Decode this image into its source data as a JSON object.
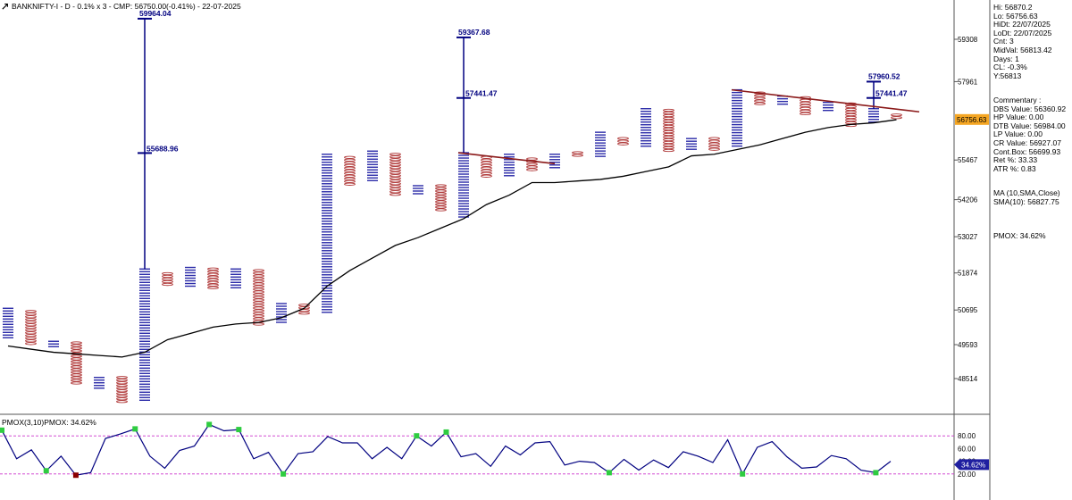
{
  "title": "BANKNIFTY-I - D - 0.1% x 3 - CMP: 56750.00(-0.41%) - 22-07-2025",
  "pane_title": "PMOX(3,10)PMOX: 34.62%",
  "colors": {
    "up": "#2a2aa8",
    "down": "#b03a3a",
    "ma": "#000000",
    "level": "#000080",
    "trend": "#8b1a1a",
    "pmox": "#000080",
    "dot_green": "#2ecc40",
    "dot_red": "#8b0000",
    "guide": "#cc33cc",
    "price_tag": "#f5a623",
    "pmox_tag": "#1f1fa0"
  },
  "info": {
    "lines": [
      "Hi: 56870.2",
      "Lo: 56756.63",
      "HiDt: 22/07/2025",
      "LoDt: 22/07/2025",
      "Cnt: 3",
      "MidVal: 56813.42",
      "Days: 1",
      "CL: -0.3%",
      "Y:56813"
    ],
    "commentary": [
      "Commentary :",
      "DBS Value:  56360.92",
      "HP Value: 0.00",
      "DTB Value: 56984.00",
      "LP Value: 0.00",
      "CR Value: 56927.07",
      "Cont.Box: 56699.93",
      "Ret %: 33.33",
      "ATR %: 0.83"
    ],
    "ma": [
      "MA (10,SMA,Close)",
      "SMA(10): 56827.75"
    ],
    "pmox": "PMOX: 34.62%"
  },
  "price_tag": "56756.63",
  "pmox_tag": "34.62%",
  "chart_data": {
    "type": "box-chart",
    "y_axis_ticks": [
      59308,
      57961,
      56756.63,
      55467,
      54206,
      53027,
      51874,
      50695,
      49593,
      48514
    ],
    "columns": [
      {
        "dir": "up",
        "hi": 50750,
        "lo": 49750
      },
      {
        "dir": "down",
        "hi": 50650,
        "lo": 49600
      },
      {
        "dir": "up",
        "hi": 49700,
        "lo": 49450
      },
      {
        "dir": "down",
        "hi": 49650,
        "lo": 48350
      },
      {
        "dir": "up",
        "hi": 48550,
        "lo": 48200
      },
      {
        "dir": "down",
        "hi": 48550,
        "lo": 47750
      },
      {
        "dir": "up",
        "hi": 52000,
        "lo": 47800
      },
      {
        "dir": "down",
        "hi": 51850,
        "lo": 51450
      },
      {
        "dir": "up",
        "hi": 52050,
        "lo": 51450
      },
      {
        "dir": "down",
        "hi": 52000,
        "lo": 51350
      },
      {
        "dir": "up",
        "hi": 52000,
        "lo": 51400
      },
      {
        "dir": "down",
        "hi": 51950,
        "lo": 50200
      },
      {
        "dir": "up",
        "hi": 50900,
        "lo": 50250
      },
      {
        "dir": "down",
        "hi": 50850,
        "lo": 50550
      },
      {
        "dir": "up",
        "hi": 55650,
        "lo": 50600
      },
      {
        "dir": "down",
        "hi": 55550,
        "lo": 54650
      },
      {
        "dir": "up",
        "hi": 55750,
        "lo": 54750
      },
      {
        "dir": "down",
        "hi": 55650,
        "lo": 54300
      },
      {
        "dir": "up",
        "hi": 54650,
        "lo": 54350
      },
      {
        "dir": "down",
        "hi": 54650,
        "lo": 53800
      },
      {
        "dir": "up",
        "hi": 55700,
        "lo": 53650
      },
      {
        "dir": "down",
        "hi": 55550,
        "lo": 54900
      },
      {
        "dir": "up",
        "hi": 55650,
        "lo": 54950
      },
      {
        "dir": "down",
        "hi": 55500,
        "lo": 55100
      },
      {
        "dir": "up",
        "hi": 55650,
        "lo": 55150
      },
      {
        "dir": "down",
        "hi": 55700,
        "lo": 55550
      },
      {
        "dir": "up",
        "hi": 56350,
        "lo": 55550
      },
      {
        "dir": "down",
        "hi": 56150,
        "lo": 55950
      },
      {
        "dir": "up",
        "hi": 57100,
        "lo": 55900
      },
      {
        "dir": "down",
        "hi": 57050,
        "lo": 55700
      },
      {
        "dir": "up",
        "hi": 56150,
        "lo": 55750
      },
      {
        "dir": "down",
        "hi": 56150,
        "lo": 55750
      },
      {
        "dir": "up",
        "hi": 57700,
        "lo": 55850
      },
      {
        "dir": "down",
        "hi": 57600,
        "lo": 57200
      },
      {
        "dir": "up",
        "hi": 57500,
        "lo": 57200
      },
      {
        "dir": "down",
        "hi": 57450,
        "lo": 56900
      },
      {
        "dir": "up",
        "hi": 57300,
        "lo": 57000
      },
      {
        "dir": "down",
        "hi": 57250,
        "lo": 56500
      },
      {
        "dir": "up",
        "hi": 57100,
        "lo": 56600
      },
      {
        "dir": "down",
        "hi": 56900,
        "lo": 56750
      }
    ],
    "sma10": [
      49550,
      49450,
      49350,
      49300,
      49250,
      49200,
      49350,
      49750,
      49950,
      50150,
      50250,
      50300,
      50450,
      50750,
      51450,
      51950,
      52350,
      52750,
      53000,
      53300,
      53600,
      54050,
      54350,
      54750,
      54750,
      54800,
      54850,
      54950,
      55100,
      55250,
      55600,
      55650,
      55800,
      55950,
      56150,
      56350,
      56500,
      56600,
      56650,
      56750
    ],
    "levels": [
      {
        "col": 6,
        "top": 59964.04,
        "top_label": "59964.04",
        "mid": 55688.96,
        "mid_label": "55688.96"
      },
      {
        "col": 20,
        "top": 59367.68,
        "top_label": "59367.68",
        "mid": 57441.47,
        "mid_label": "57441.47"
      },
      {
        "col": 38,
        "top": 57960.52,
        "top_label": "57960.52",
        "mid": 57441.47,
        "mid_label": "57441.47"
      }
    ],
    "trend_lines": [
      {
        "from_col": 20,
        "from": 55700,
        "to_col": 24,
        "to": 55350
      },
      {
        "from_col": 32,
        "from": 57700,
        "to_col": 40,
        "to": 57000
      }
    ],
    "pmox": {
      "guides": [
        80,
        20
      ],
      "axis_labels": [
        "80.00",
        "60.00",
        "40.00",
        "20.00"
      ],
      "values": [
        89,
        44,
        58,
        25,
        48,
        18,
        22,
        76,
        83,
        91,
        48,
        29,
        57,
        64,
        98,
        88,
        90,
        44,
        54,
        20,
        52,
        55,
        79,
        69,
        69,
        44,
        62,
        44,
        80,
        64,
        86,
        47,
        52,
        32,
        64,
        50,
        69,
        71,
        34,
        40,
        38,
        22,
        43,
        26,
        42,
        30,
        55,
        48,
        38,
        74,
        20,
        62,
        71,
        47,
        29,
        31,
        49,
        44,
        26,
        22,
        40
      ],
      "markers": [
        {
          "i": 0,
          "c": "green"
        },
        {
          "i": 3,
          "c": "green"
        },
        {
          "i": 5,
          "c": "red"
        },
        {
          "i": 6,
          "c": "green"
        },
        {
          "i": 8,
          "c": "green"
        },
        {
          "i": 11,
          "c": "green"
        },
        {
          "i": 13,
          "c": "green"
        },
        {
          "i": 14,
          "c": "green"
        },
        {
          "i": 15,
          "c": "green"
        },
        {
          "i": 16,
          "c": "green"
        },
        {
          "i": 19,
          "c": "green"
        },
        {
          "i": 28,
          "c": "green"
        },
        {
          "i": 31,
          "c": "green"
        },
        {
          "i": 33,
          "c": "green"
        },
        {
          "i": 34,
          "c": "green"
        },
        {
          "i": 36,
          "c": "green"
        }
      ]
    }
  }
}
